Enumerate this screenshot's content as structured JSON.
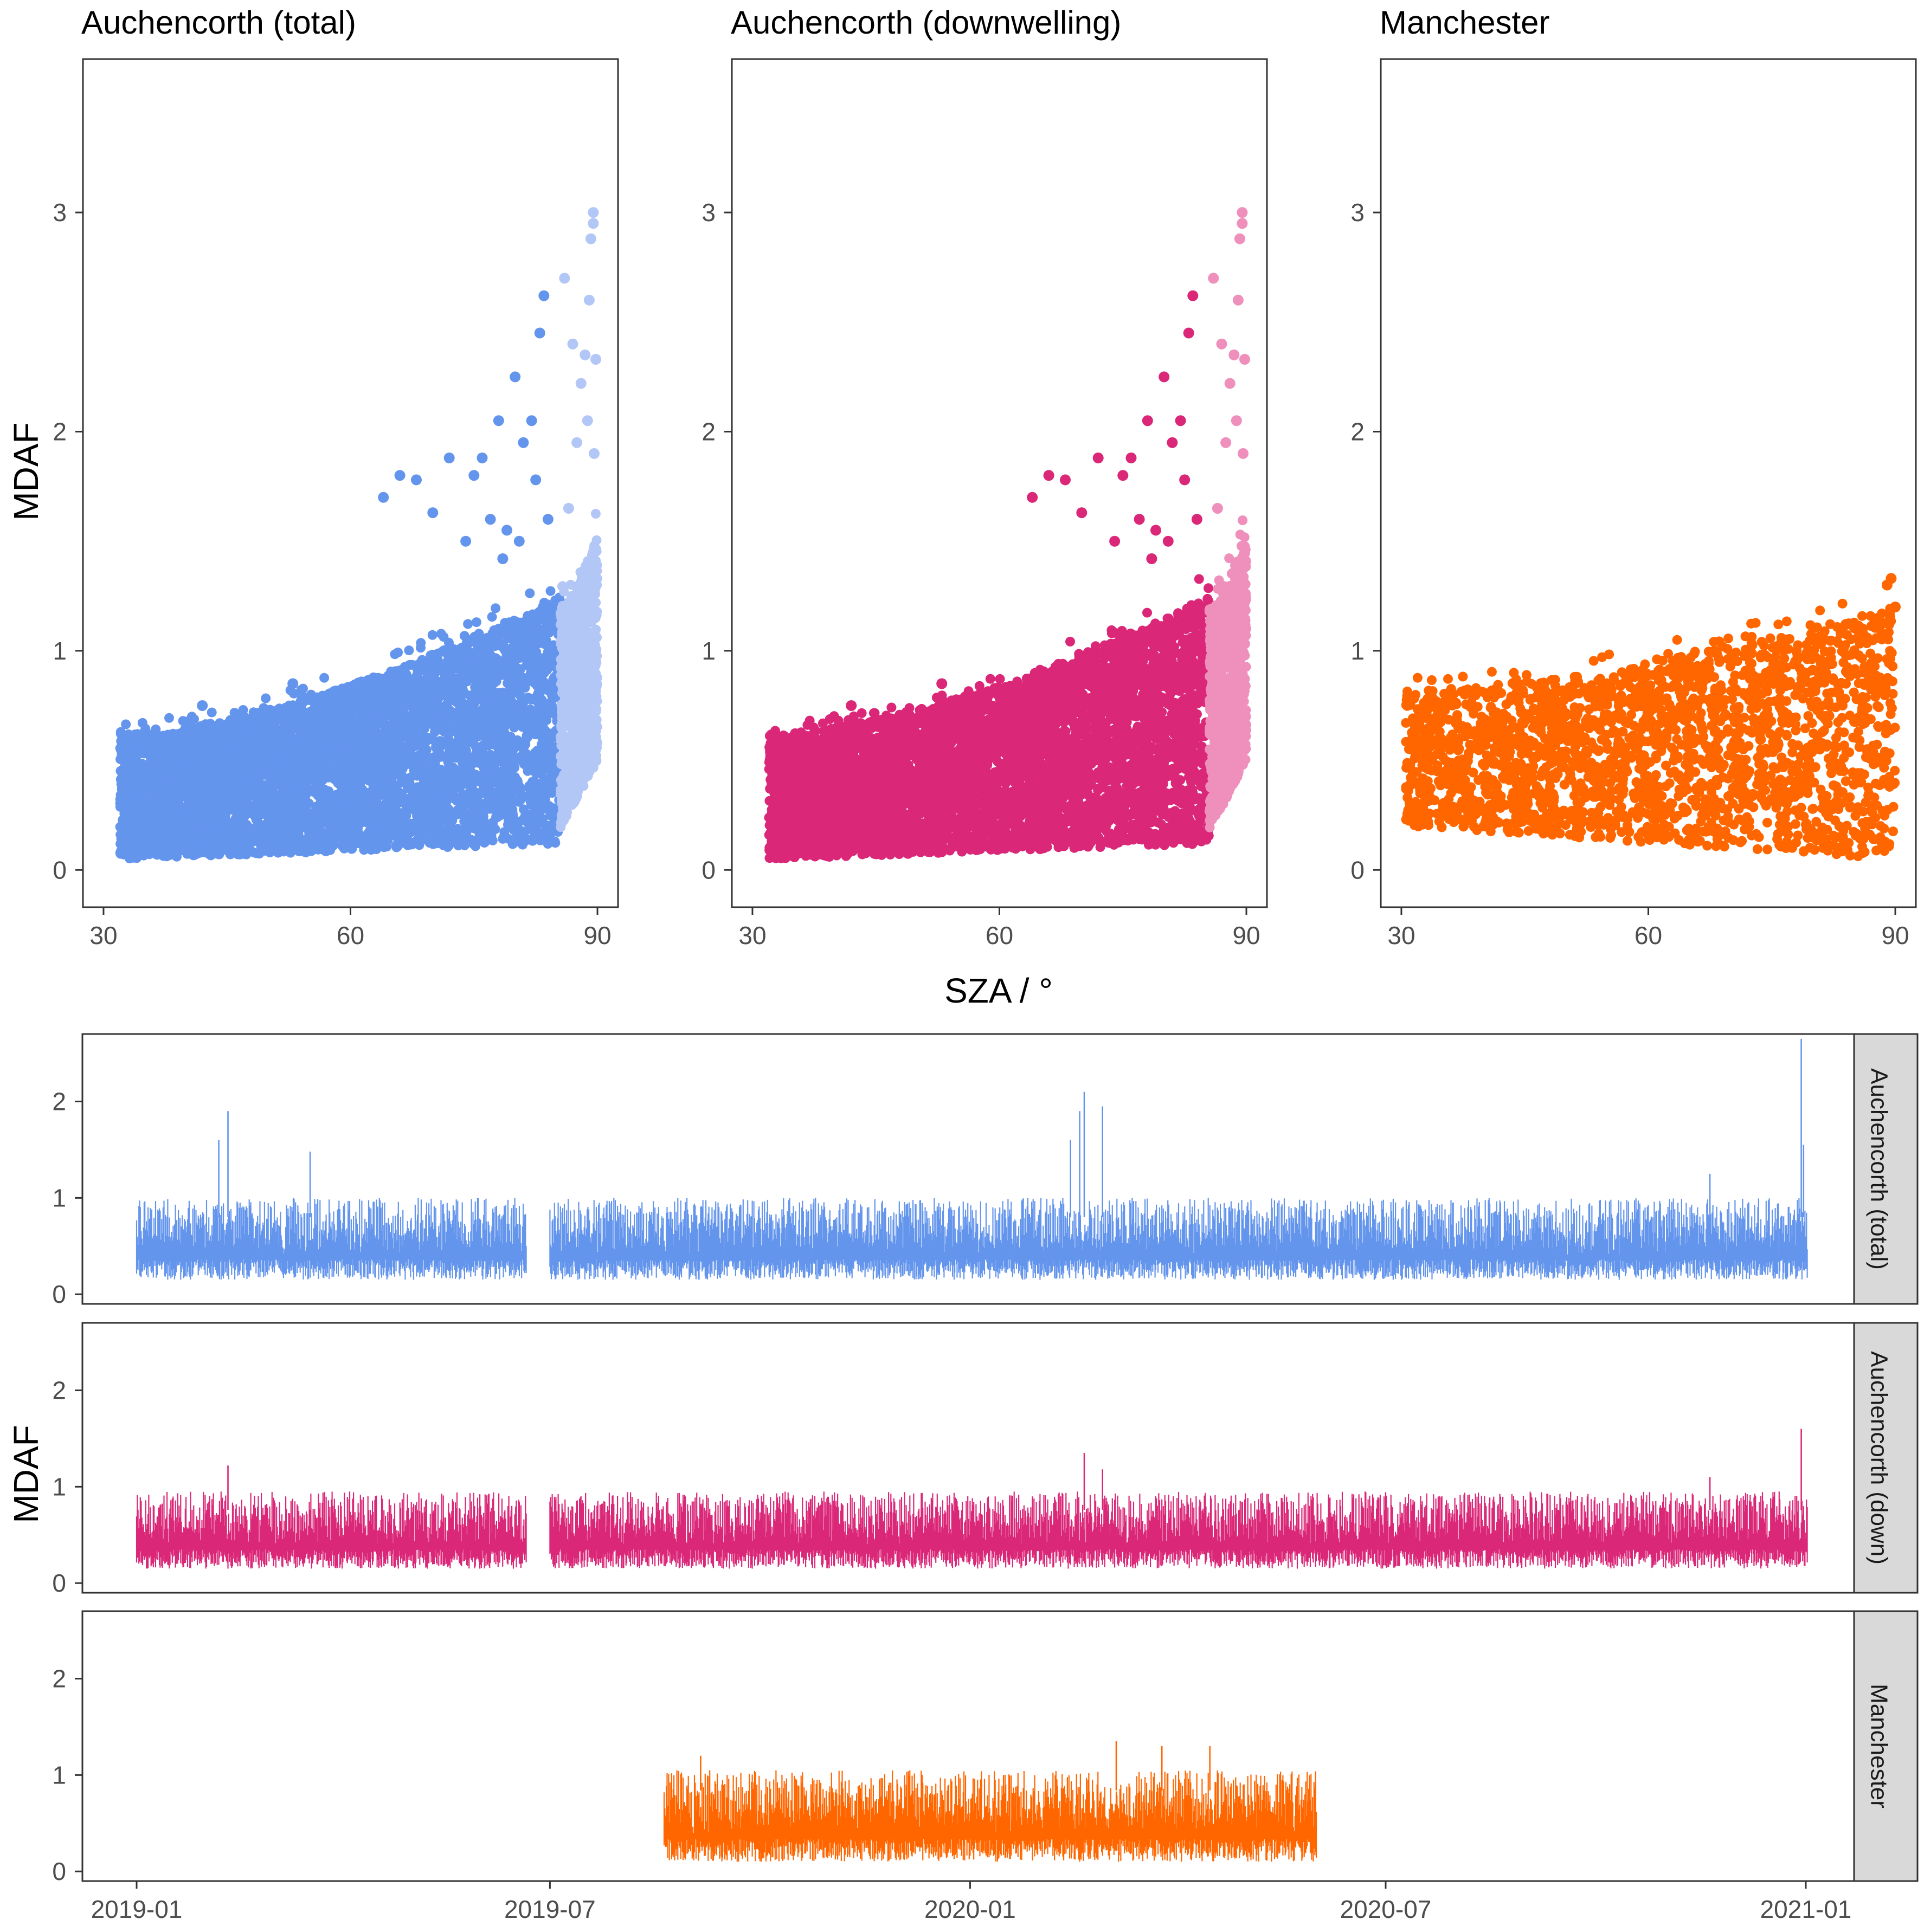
{
  "figure": {
    "scatter_x_title": "SZA / °",
    "y_title": "MDAF",
    "timeseries_y_title": "MDAF"
  },
  "chart_data": [
    {
      "type": "scatter",
      "title": "Auchencorth (total)",
      "xlabel": "SZA / °",
      "ylabel": "MDAF",
      "xlim": [
        27.5,
        92.5
      ],
      "ylim": [
        -0.17,
        3.7
      ],
      "xticks": [
        30,
        60,
        90
      ],
      "yticks": [
        0,
        1,
        2,
        3
      ],
      "series": [
        {
          "name": "main",
          "color": "#6495ED",
          "sza_range": [
            32,
            85.5
          ],
          "body_low": [
            0.05,
            0.12
          ],
          "body_high": [
            0.62,
            1.25
          ],
          "outliers": [
            [
              42,
              0.75
            ],
            [
              53,
              0.85
            ],
            [
              64,
              1.7
            ],
            [
              66,
              1.8
            ],
            [
              68,
              1.78
            ],
            [
              70,
              1.63
            ],
            [
              72,
              1.88
            ],
            [
              74,
              1.5
            ],
            [
              75,
              1.8
            ],
            [
              76,
              1.88
            ],
            [
              77,
              1.6
            ],
            [
              78,
              2.05
            ],
            [
              79,
              1.55
            ],
            [
              80,
              2.25
            ],
            [
              81,
              1.95
            ],
            [
              82,
              2.05
            ],
            [
              83,
              2.45
            ],
            [
              83.5,
              2.62
            ],
            [
              84,
              1.6
            ],
            [
              82.5,
              1.78
            ],
            [
              80.5,
              1.5
            ],
            [
              78.5,
              1.42
            ]
          ]
        },
        {
          "name": "high-SZA",
          "color": "#B3C7F7",
          "sza_range": [
            85.5,
            90
          ],
          "body_low": [
            0.18,
            0.5
          ],
          "body_high": [
            1.2,
            1.55
          ],
          "outliers": [
            [
              86,
              2.7
            ],
            [
              87,
              2.4
            ],
            [
              88,
              2.22
            ],
            [
              88.5,
              2.35
            ],
            [
              89,
              2.6
            ],
            [
              89.5,
              2.95
            ],
            [
              89.5,
              3.0
            ],
            [
              89.2,
              2.88
            ],
            [
              89.8,
              2.33
            ],
            [
              88.8,
              2.05
            ],
            [
              87.5,
              1.95
            ],
            [
              86.5,
              1.65
            ],
            [
              89.6,
              1.9
            ]
          ]
        }
      ]
    },
    {
      "type": "scatter",
      "title": "Auchencorth (downwelling)",
      "xlabel": "SZA / °",
      "ylabel": "MDAF",
      "xlim": [
        27.5,
        92.5
      ],
      "ylim": [
        -0.17,
        3.7
      ],
      "xticks": [
        30,
        60,
        90
      ],
      "yticks": [
        0,
        1,
        2,
        3
      ],
      "series": [
        {
          "name": "main",
          "color": "#DB2778",
          "sza_range": [
            32,
            85.5
          ],
          "body_low": [
            0.05,
            0.12
          ],
          "body_high": [
            0.62,
            1.25
          ],
          "outliers": [
            [
              42,
              0.75
            ],
            [
              53,
              0.85
            ],
            [
              64,
              1.7
            ],
            [
              66,
              1.8
            ],
            [
              68,
              1.78
            ],
            [
              70,
              1.63
            ],
            [
              72,
              1.88
            ],
            [
              74,
              1.5
            ],
            [
              75,
              1.8
            ],
            [
              76,
              1.88
            ],
            [
              77,
              1.6
            ],
            [
              78,
              2.05
            ],
            [
              79,
              1.55
            ],
            [
              80,
              2.25
            ],
            [
              81,
              1.95
            ],
            [
              82,
              2.05
            ],
            [
              83,
              2.45
            ],
            [
              83.5,
              2.62
            ],
            [
              84,
              1.6
            ],
            [
              82.5,
              1.78
            ],
            [
              80.5,
              1.5
            ],
            [
              78.5,
              1.42
            ]
          ]
        },
        {
          "name": "high-SZA",
          "color": "#EE8FBC",
          "sza_range": [
            85.5,
            90
          ],
          "body_low": [
            0.18,
            0.5
          ],
          "body_high": [
            1.2,
            1.55
          ],
          "outliers": [
            [
              86,
              2.7
            ],
            [
              87,
              2.4
            ],
            [
              88,
              2.22
            ],
            [
              88.5,
              2.35
            ],
            [
              89,
              2.6
            ],
            [
              89.5,
              2.95
            ],
            [
              89.5,
              3.0
            ],
            [
              89.2,
              2.88
            ],
            [
              89.8,
              2.33
            ],
            [
              88.8,
              2.05
            ],
            [
              87.5,
              1.95
            ],
            [
              86.5,
              1.65
            ],
            [
              89.6,
              1.9
            ]
          ]
        }
      ]
    },
    {
      "type": "scatter",
      "title": "Manchester",
      "xlabel": "SZA / °",
      "ylabel": "MDAF",
      "xlim": [
        27.5,
        92.5
      ],
      "ylim": [
        -0.17,
        3.7
      ],
      "xticks": [
        30,
        60,
        90
      ],
      "yticks": [
        0,
        1,
        2,
        3
      ],
      "series": [
        {
          "name": "main",
          "color": "#FF6600",
          "sza_range": [
            30.5,
            90
          ],
          "body_low": [
            0.2,
            0.05
          ],
          "body_high": [
            0.82,
            1.2
          ],
          "outliers": [
            [
              89.5,
              1.33
            ],
            [
              89,
              1.3
            ],
            [
              90,
              1.2
            ],
            [
              88,
              1.15
            ],
            [
              86,
              1.1
            ],
            [
              84,
              1.12
            ]
          ]
        }
      ]
    },
    {
      "type": "line",
      "facet": "Auchencorth (total)",
      "color": "#6495ED",
      "xlabel": "",
      "ylabel": "MDAF",
      "x_range": [
        "2019-01-01",
        "2021-01-01"
      ],
      "xticks": [
        "2019-01",
        "2019-07",
        "2020-01",
        "2020-07",
        "2021-01"
      ],
      "yticks": [
        0,
        1,
        2
      ],
      "ylim": [
        -0.1,
        2.7
      ],
      "segments": [
        [
          "2019-01-01",
          "2019-06-20"
        ],
        [
          "2019-07-01",
          "2021-01-01"
        ]
      ],
      "typical_range": [
        0.15,
        1.0
      ],
      "peaks": [
        [
          "2019-02-10",
          1.9
        ],
        [
          "2019-02-06",
          1.6
        ],
        [
          "2019-03-18",
          1.48
        ],
        [
          "2020-02-20",
          2.1
        ],
        [
          "2020-02-18",
          1.9
        ],
        [
          "2020-02-28",
          1.95
        ],
        [
          "2020-02-14",
          1.6
        ],
        [
          "2020-12-30",
          2.65
        ],
        [
          "2020-12-31",
          1.55
        ],
        [
          "2020-11-20",
          1.25
        ]
      ]
    },
    {
      "type": "line",
      "facet": "Auchencorth (down)",
      "color": "#DB2778",
      "xlabel": "",
      "ylabel": "MDAF",
      "x_range": [
        "2019-01-01",
        "2021-01-01"
      ],
      "xticks": [
        "2019-01",
        "2019-07",
        "2020-01",
        "2020-07",
        "2021-01"
      ],
      "yticks": [
        0,
        1,
        2
      ],
      "ylim": [
        -0.1,
        2.7
      ],
      "segments": [
        [
          "2019-01-01",
          "2019-06-20"
        ],
        [
          "2019-07-01",
          "2021-01-01"
        ]
      ],
      "typical_range": [
        0.15,
        0.95
      ],
      "peaks": [
        [
          "2019-02-10",
          1.22
        ],
        [
          "2020-02-20",
          1.35
        ],
        [
          "2020-02-28",
          1.18
        ],
        [
          "2020-12-30",
          1.6
        ],
        [
          "2020-11-20",
          1.1
        ]
      ]
    },
    {
      "type": "line",
      "facet": "Manchester",
      "color": "#FF6600",
      "xlabel": "",
      "ylabel": "MDAF",
      "x_range": [
        "2019-01-01",
        "2021-01-01"
      ],
      "xticks": [
        "2019-01",
        "2019-07",
        "2020-01",
        "2020-07",
        "2021-01"
      ],
      "yticks": [
        0,
        1,
        2
      ],
      "ylim": [
        -0.1,
        2.7
      ],
      "segments": [
        [
          "2019-08-20",
          "2020-05-31"
        ]
      ],
      "typical_range": [
        0.1,
        1.05
      ],
      "peaks": [
        [
          "2020-03-05",
          1.35
        ],
        [
          "2020-03-25",
          1.3
        ],
        [
          "2020-04-15",
          1.3
        ],
        [
          "2019-09-05",
          1.2
        ]
      ]
    }
  ]
}
